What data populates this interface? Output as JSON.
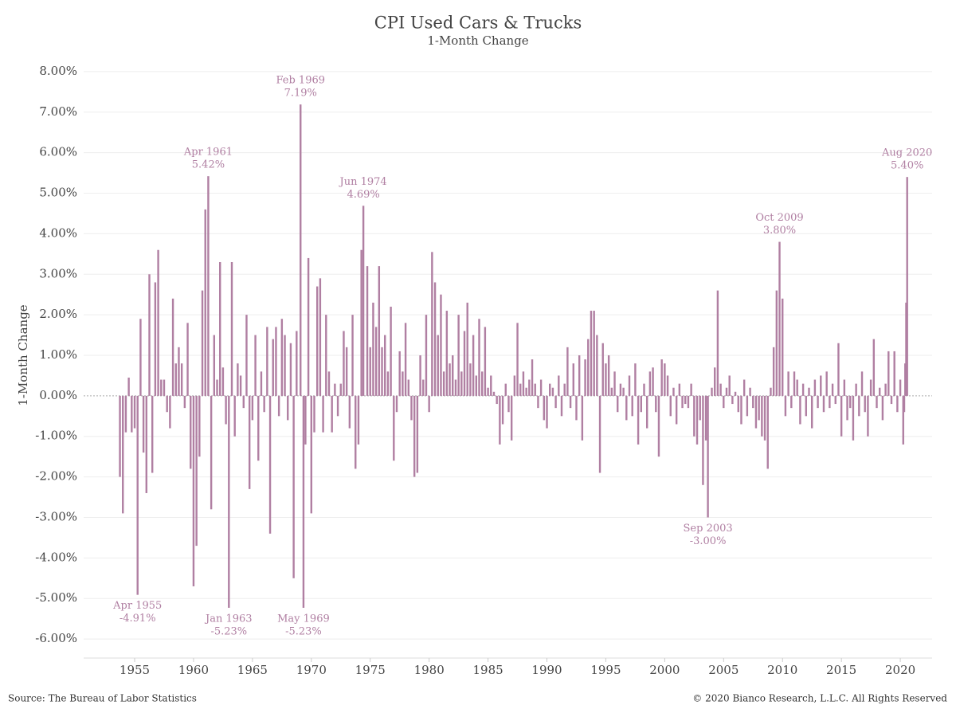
{
  "chart_data": {
    "type": "bar",
    "title": "CPI Used Cars & Trucks",
    "subtitle": "1-Month Change",
    "y_label": "1-Month Change",
    "source": "Source: The Bureau of Labor Statistics",
    "copyright": "© 2020 Bianco Research, L.L.C. All Rights Reserved",
    "color": "#b07fa2",
    "grid": true,
    "xlim": [
      1950.67,
      2022.7
    ],
    "ylim": [
      -6.47,
      8.49
    ],
    "xticks": [
      1955,
      1960,
      1965,
      1970,
      1975,
      1980,
      1985,
      1990,
      1995,
      2000,
      2005,
      2010,
      2015,
      2020
    ],
    "yticks": [
      {
        "value": 8,
        "label": "8.00%"
      },
      {
        "value": 7,
        "label": "7.00%"
      },
      {
        "value": 6,
        "label": "6.00%"
      },
      {
        "value": 5,
        "label": "5.00%"
      },
      {
        "value": 4,
        "label": "4.00%"
      },
      {
        "value": 3,
        "label": "3.00%"
      },
      {
        "value": 2,
        "label": "2.00%"
      },
      {
        "value": 1,
        "label": "1.00%"
      },
      {
        "value": 0,
        "label": "0.00%"
      },
      {
        "value": -1,
        "label": "-1.00%"
      },
      {
        "value": -2,
        "label": "-2.00%"
      },
      {
        "value": -3,
        "label": "-3.00%"
      },
      {
        "value": -4,
        "label": "-4.00%"
      },
      {
        "value": -5,
        "label": "-5.00%"
      },
      {
        "value": -6,
        "label": "-6.00%"
      }
    ],
    "x": [
      1953.75,
      1954,
      1954.25,
      1954.5,
      1954.75,
      1955,
      1955.25,
      1955.5,
      1955.75,
      1956,
      1956.25,
      1956.5,
      1956.75,
      1957,
      1957.25,
      1957.5,
      1957.75,
      1958,
      1958.25,
      1958.5,
      1958.75,
      1959,
      1959.25,
      1959.5,
      1959.75,
      1960,
      1960.25,
      1960.5,
      1960.75,
      1961,
      1961.25,
      1961.5,
      1961.75,
      1962,
      1962.25,
      1962.5,
      1962.75,
      1963,
      1963.25,
      1963.5,
      1963.75,
      1964,
      1964.25,
      1964.5,
      1964.75,
      1965,
      1965.25,
      1965.5,
      1965.75,
      1966,
      1966.25,
      1966.5,
      1966.75,
      1967,
      1967.25,
      1967.5,
      1967.75,
      1968,
      1968.25,
      1968.5,
      1968.75,
      1969.083,
      1969.333,
      1969.5,
      1969.75,
      1970,
      1970.25,
      1970.5,
      1970.75,
      1971,
      1971.25,
      1971.5,
      1971.75,
      1972,
      1972.25,
      1972.5,
      1972.75,
      1973,
      1973.25,
      1973.5,
      1973.75,
      1974,
      1974.25,
      1974.417,
      1974.75,
      1975,
      1975.25,
      1975.5,
      1975.75,
      1976,
      1976.25,
      1976.5,
      1976.75,
      1977,
      1977.25,
      1977.5,
      1977.75,
      1978,
      1978.25,
      1978.5,
      1978.75,
      1979,
      1979.25,
      1979.5,
      1979.75,
      1980,
      1980.25,
      1980.5,
      1980.75,
      1981,
      1981.25,
      1981.5,
      1981.75,
      1982,
      1982.25,
      1982.5,
      1982.75,
      1983,
      1983.25,
      1983.5,
      1983.75,
      1984,
      1984.25,
      1984.5,
      1984.75,
      1985,
      1985.25,
      1985.5,
      1985.75,
      1986,
      1986.25,
      1986.5,
      1986.75,
      1987,
      1987.25,
      1987.5,
      1987.75,
      1988,
      1988.25,
      1988.5,
      1988.75,
      1989,
      1989.25,
      1989.5,
      1989.75,
      1990,
      1990.25,
      1990.5,
      1990.75,
      1991,
      1991.25,
      1991.5,
      1991.75,
      1992,
      1992.25,
      1992.5,
      1992.75,
      1993,
      1993.25,
      1993.5,
      1993.75,
      1994,
      1994.25,
      1994.5,
      1994.75,
      1995,
      1995.25,
      1995.5,
      1995.75,
      1996,
      1996.25,
      1996.5,
      1996.75,
      1997,
      1997.25,
      1997.5,
      1997.75,
      1998,
      1998.25,
      1998.5,
      1998.75,
      1999,
      1999.25,
      1999.5,
      1999.75,
      2000,
      2000.25,
      2000.5,
      2000.75,
      2001,
      2001.25,
      2001.5,
      2001.75,
      2002,
      2002.25,
      2002.5,
      2002.75,
      2003,
      2003.25,
      2003.5,
      2003.667,
      2004,
      2004.25,
      2004.5,
      2004.75,
      2005,
      2005.25,
      2005.5,
      2005.75,
      2006,
      2006.25,
      2006.5,
      2006.75,
      2007,
      2007.25,
      2007.5,
      2007.75,
      2008,
      2008.25,
      2008.5,
      2008.75,
      2009,
      2009.25,
      2009.5,
      2009.75,
      2010,
      2010.25,
      2010.5,
      2010.75,
      2011,
      2011.25,
      2011.5,
      2011.75,
      2012,
      2012.25,
      2012.5,
      2012.75,
      2013,
      2013.25,
      2013.5,
      2013.75,
      2014,
      2014.25,
      2014.5,
      2014.75,
      2015,
      2015.25,
      2015.5,
      2015.75,
      2016,
      2016.25,
      2016.5,
      2016.75,
      2017,
      2017.25,
      2017.5,
      2017.75,
      2018,
      2018.25,
      2018.5,
      2018.75,
      2019,
      2019.25,
      2019.5,
      2019.75,
      2020,
      2020.25,
      2020.333,
      2020.417,
      2020.5,
      2020.583
    ],
    "values": [
      -2.0,
      -2.9,
      -0.9,
      0.45,
      -0.9,
      -0.8,
      -4.91,
      1.9,
      -1.4,
      -2.4,
      3.0,
      -1.9,
      2.8,
      3.6,
      0.4,
      0.4,
      -0.4,
      -0.8,
      2.4,
      0.8,
      1.2,
      0.8,
      -0.3,
      1.8,
      -1.8,
      -4.7,
      -3.7,
      -1.5,
      2.6,
      4.6,
      5.42,
      -2.8,
      1.5,
      0.4,
      3.3,
      0.7,
      -0.7,
      -5.23,
      3.3,
      -1.0,
      0.8,
      0.5,
      -0.3,
      2.0,
      -2.3,
      -0.6,
      1.5,
      -1.6,
      0.6,
      -0.4,
      1.7,
      -3.4,
      1.4,
      1.7,
      -0.5,
      1.9,
      1.5,
      -0.6,
      1.3,
      -4.5,
      1.6,
      7.19,
      -5.23,
      -1.2,
      3.4,
      -2.9,
      -0.9,
      2.7,
      2.9,
      -0.9,
      2.0,
      0.6,
      -0.9,
      0.3,
      -0.5,
      0.3,
      1.6,
      1.2,
      -0.8,
      2.0,
      -1.8,
      -1.2,
      3.6,
      4.69,
      3.2,
      1.2,
      2.3,
      1.7,
      3.2,
      1.2,
      1.5,
      0.6,
      2.2,
      -1.6,
      -0.4,
      1.1,
      0.6,
      1.8,
      0.4,
      -0.6,
      -2.0,
      -1.9,
      1.0,
      0.4,
      2.0,
      -0.4,
      3.55,
      2.8,
      1.5,
      2.5,
      0.6,
      2.1,
      0.8,
      1.0,
      0.4,
      2.0,
      0.6,
      1.6,
      2.3,
      0.8,
      1.5,
      0.5,
      1.9,
      0.6,
      1.7,
      0.2,
      0.5,
      0.1,
      -0.2,
      -1.2,
      -0.7,
      0.3,
      -0.4,
      -1.1,
      0.5,
      1.8,
      0.3,
      0.6,
      0.2,
      0.4,
      0.9,
      0.3,
      -0.3,
      0.4,
      -0.6,
      -0.8,
      0.3,
      0.2,
      -0.3,
      0.5,
      -0.5,
      0.3,
      1.2,
      -0.3,
      0.8,
      -0.6,
      1.0,
      -1.1,
      0.9,
      1.4,
      2.1,
      2.1,
      1.5,
      -1.9,
      1.3,
      0.8,
      1.0,
      0.2,
      0.6,
      -0.4,
      0.3,
      0.2,
      -0.6,
      0.5,
      -0.5,
      0.8,
      -1.2,
      -0.4,
      0.3,
      -0.8,
      0.6,
      0.7,
      -0.4,
      -1.5,
      0.9,
      0.8,
      0.5,
      -0.5,
      0.2,
      -0.7,
      0.3,
      -0.3,
      -0.2,
      -0.3,
      0.3,
      -1.0,
      -1.2,
      -0.6,
      -2.2,
      -1.1,
      -3.0,
      0.2,
      0.7,
      2.6,
      0.3,
      -0.3,
      0.2,
      0.5,
      -0.2,
      0.1,
      -0.4,
      -0.7,
      0.4,
      -0.5,
      0.2,
      -0.3,
      -0.8,
      -0.6,
      -1.0,
      -1.1,
      -1.8,
      0.2,
      1.2,
      2.6,
      3.8,
      2.4,
      -0.5,
      0.6,
      -0.3,
      0.6,
      0.4,
      -0.7,
      0.3,
      -0.5,
      0.2,
      -0.8,
      0.4,
      -0.3,
      0.5,
      -0.4,
      0.6,
      -0.3,
      0.3,
      -0.2,
      1.3,
      -1.0,
      0.4,
      -0.6,
      -0.3,
      -1.1,
      0.3,
      -0.5,
      0.6,
      -0.4,
      -1.0,
      0.4,
      1.4,
      -0.3,
      0.2,
      -0.6,
      0.3,
      1.1,
      -0.2,
      1.1,
      -0.4,
      0.4,
      -1.2,
      -0.4,
      0.8,
      2.3,
      5.4
    ],
    "annotations": [
      {
        "x": 1955.25,
        "y": -4.91,
        "text": [
          "Apr 1955",
          "-4.91%"
        ]
      },
      {
        "x": 1961.25,
        "y": 5.42,
        "text": [
          "Apr 1961",
          "5.42%"
        ]
      },
      {
        "x": 1963,
        "y": -5.23,
        "text": [
          "Jan 1963",
          "-5.23%"
        ]
      },
      {
        "x": 1969.083,
        "y": 7.19,
        "text": [
          "Feb 1969",
          "7.19%"
        ]
      },
      {
        "x": 1969.333,
        "y": -5.23,
        "text": [
          "May 1969",
          "-5.23%"
        ]
      },
      {
        "x": 1974.417,
        "y": 4.69,
        "text": [
          "Jun 1974",
          "4.69%"
        ]
      },
      {
        "x": 2003.667,
        "y": -3.0,
        "text": [
          "Sep 2003",
          "-3.00%"
        ]
      },
      {
        "x": 2009.75,
        "y": 3.8,
        "text": [
          "Oct 2009",
          "3.80%"
        ]
      },
      {
        "x": 2020.583,
        "y": 5.4,
        "text": [
          "Aug 2020",
          "5.40%"
        ]
      }
    ]
  }
}
